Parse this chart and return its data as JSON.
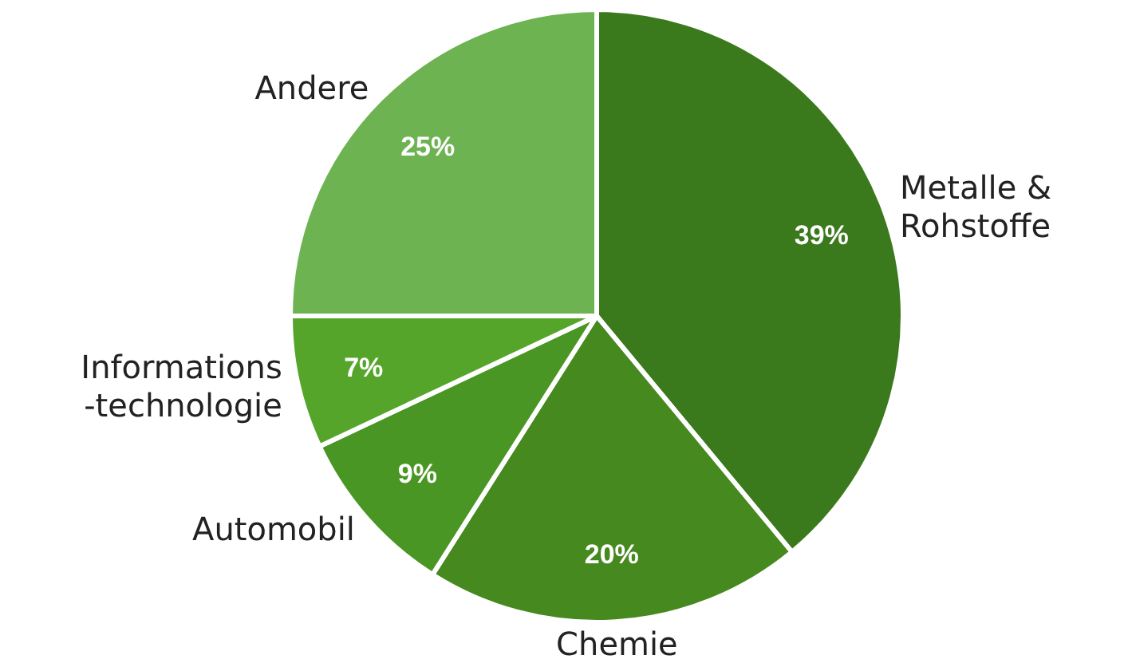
{
  "chart_data": {
    "type": "pie",
    "categories": [
      "Metalle &\nRohstoffe",
      "Chemie",
      "Automobil",
      "Informations\n-technologie",
      "Andere"
    ],
    "values": [
      39,
      20,
      9,
      7,
      25
    ],
    "value_labels": [
      "39%",
      "20%",
      "9%",
      "7%",
      "25%"
    ],
    "colors": [
      "#3b7a1c",
      "#45891f",
      "#4a9624",
      "#55a52a",
      "#6db352"
    ]
  }
}
